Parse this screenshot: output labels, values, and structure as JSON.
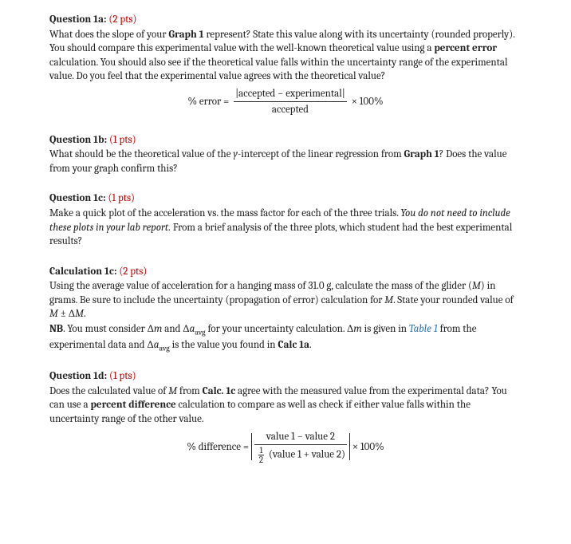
{
  "sections": {
    "q1a": {
      "heading": "Question 1a",
      "pts": "(2 pts)",
      "body": "What does the slope of your <b>Graph 1</b> represent? State this value along with its uncertainty (rounded properly). You should compare this experimental value with the well-known theoretical value using a <b>percent error</b> calculation. You should also see if the theoretical value falls within the uncertainty range of the experimental value. Do you feel that the experimental value agrees with the theoretical value?",
      "formula": {
        "lhs": "% error =",
        "num": "|accepted − experimental|",
        "den": "accepted",
        "rhs": "× 100%"
      }
    },
    "q1b": {
      "heading": "Question 1b",
      "pts": "(1 pts)",
      "body": "What should be the theoretical value of the <i>y</i>-intercept of the linear regression from <b>Graph 1</b>? Does the value from your graph confirm this?"
    },
    "q1c": {
      "heading": "Question 1c",
      "pts": "(1 pts)",
      "body": "Make a quick plot of the acceleration vs. the mass factor for each of the three trials. <i>You do not need to include these plots in your lab report.</i> From a brief analysis of the three plots, which student had the best experimental results?"
    },
    "c1c": {
      "heading": "Calculation 1c",
      "pts": "(2 pts)",
      "body": "Using the average value of acceleration for a hanging mass of 31.0 g, calculate the mass of the glider (<i>M</i>) in grams. Be sure to include the uncertainty (propagation of error) calculation for <i>M</i>. State your rounded value of <i>M</i> ± Δ<i>M</i>.",
      "nb": "<b>NB</b>. You must consider Δ<i>m</i> and Δ<i>a</i><sub>avg</sub> for your uncertainty calculation. Δ<i>m</i> is given in <span class=\"link\"><i>Table 1</i></span> from the experimental data and Δ<i>a</i><sub>avg</sub> is the value you found in <b>Calc 1a</b>."
    },
    "q1d": {
      "heading": "Question 1d",
      "pts": "(1 pts)",
      "body": "Does the calculated value of <i>M</i> from <b>Calc. 1c</b> agree with the measured value from the experimental data? You can use a <b>percent difference</b> calculation to compare as well as check if either value falls within the uncertainty range of the other value.",
      "formula": {
        "lhs": "% difference =",
        "num": "value 1 − value 2",
        "den_pre": "(value 1 + value 2)",
        "rhs": "× 100%"
      }
    }
  },
  "colors": {
    "text": "#222222",
    "pts": "#c00000",
    "link": "#2e74b5"
  }
}
